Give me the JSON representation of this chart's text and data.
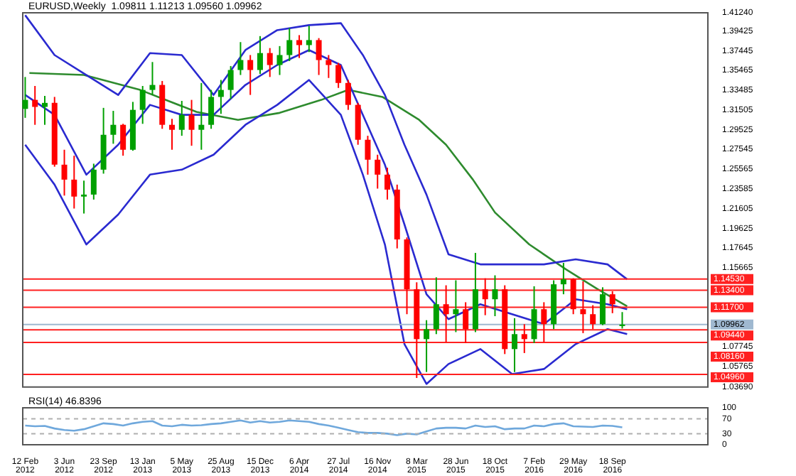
{
  "chart_data": [
    {
      "type": "candlestick",
      "title": "EURUSD,Weekly  1.09811 1.11213 1.09560 1.09962",
      "x": [
        "2012-02-12",
        "2012-03-11",
        "2012-04-08",
        "2012-05-06",
        "2012-06-03",
        "2012-07-01",
        "2012-07-29",
        "2012-08-26",
        "2012-09-23",
        "2012-10-21",
        "2012-11-18",
        "2012-12-16",
        "2013-01-13",
        "2013-02-10",
        "2013-03-10",
        "2013-04-07",
        "2013-05-05",
        "2013-06-02",
        "2013-06-30",
        "2013-07-28",
        "2013-08-25",
        "2013-09-22",
        "2013-10-20",
        "2013-11-17",
        "2013-12-15",
        "2014-01-12",
        "2014-02-09",
        "2014-03-09",
        "2014-04-06",
        "2014-05-04",
        "2014-06-01",
        "2014-06-29",
        "2014-07-27",
        "2014-08-24",
        "2014-09-21",
        "2014-10-19",
        "2014-11-16",
        "2014-12-14",
        "2015-01-11",
        "2015-02-08",
        "2015-03-08",
        "2015-04-05",
        "2015-05-03",
        "2015-05-31",
        "2015-06-28",
        "2015-07-26",
        "2015-08-23",
        "2015-09-20",
        "2015-10-18",
        "2015-11-15",
        "2015-12-13",
        "2016-01-10",
        "2016-02-07",
        "2016-03-06",
        "2016-04-03",
        "2016-05-01",
        "2016-05-29",
        "2016-06-26",
        "2016-07-24",
        "2016-08-21",
        "2016-09-18",
        "2016-10-16"
      ],
      "ohlc": [
        [
          1.316,
          1.348,
          1.307,
          1.325
        ],
        [
          1.325,
          1.339,
          1.3,
          1.318
        ],
        [
          1.318,
          1.329,
          1.3,
          1.322
        ],
        [
          1.322,
          1.328,
          1.258,
          1.26
        ],
        [
          1.26,
          1.275,
          1.229,
          1.245
        ],
        [
          1.245,
          1.269,
          1.216,
          1.228
        ],
        [
          1.228,
          1.244,
          1.211,
          1.23
        ],
        [
          1.23,
          1.261,
          1.225,
          1.255
        ],
        [
          1.255,
          1.317,
          1.251,
          1.29
        ],
        [
          1.29,
          1.314,
          1.281,
          1.3
        ],
        [
          1.3,
          1.301,
          1.269,
          1.275
        ],
        [
          1.275,
          1.323,
          1.274,
          1.315
        ],
        [
          1.315,
          1.339,
          1.301,
          1.335
        ],
        [
          1.335,
          1.363,
          1.33,
          1.34
        ],
        [
          1.34,
          1.344,
          1.296,
          1.3
        ],
        [
          1.3,
          1.306,
          1.275,
          1.295
        ],
        [
          1.295,
          1.324,
          1.289,
          1.31
        ],
        [
          1.31,
          1.325,
          1.279,
          1.295
        ],
        [
          1.295,
          1.342,
          1.275,
          1.3
        ],
        [
          1.3,
          1.335,
          1.296,
          1.328
        ],
        [
          1.328,
          1.345,
          1.311,
          1.335
        ],
        [
          1.335,
          1.359,
          1.326,
          1.355
        ],
        [
          1.355,
          1.383,
          1.35,
          1.365
        ],
        [
          1.365,
          1.37,
          1.33,
          1.355
        ],
        [
          1.355,
          1.389,
          1.351,
          1.372
        ],
        [
          1.372,
          1.377,
          1.348,
          1.36
        ],
        [
          1.36,
          1.379,
          1.35,
          1.37
        ],
        [
          1.37,
          1.397,
          1.364,
          1.385
        ],
        [
          1.385,
          1.39,
          1.367,
          1.38
        ],
        [
          1.38,
          1.3993,
          1.373,
          1.385
        ],
        [
          1.385,
          1.387,
          1.35,
          1.365
        ],
        [
          1.365,
          1.37,
          1.347,
          1.36
        ],
        [
          1.36,
          1.362,
          1.337,
          1.342
        ],
        [
          1.342,
          1.345,
          1.315,
          1.32
        ],
        [
          1.32,
          1.322,
          1.28,
          1.285
        ],
        [
          1.285,
          1.289,
          1.25,
          1.265
        ],
        [
          1.265,
          1.27,
          1.236,
          1.25
        ],
        [
          1.25,
          1.257,
          1.225,
          1.235
        ],
        [
          1.235,
          1.24,
          1.176,
          1.185
        ],
        [
          1.185,
          1.187,
          1.11,
          1.135
        ],
        [
          1.135,
          1.142,
          1.046,
          1.085
        ],
        [
          1.085,
          1.104,
          1.052,
          1.095
        ],
        [
          1.095,
          1.147,
          1.09,
          1.12
        ],
        [
          1.12,
          1.139,
          1.082,
          1.11
        ],
        [
          1.11,
          1.144,
          1.092,
          1.115
        ],
        [
          1.115,
          1.122,
          1.081,
          1.095
        ],
        [
          1.095,
          1.1715,
          1.092,
          1.135
        ],
        [
          1.135,
          1.146,
          1.109,
          1.125
        ],
        [
          1.125,
          1.149,
          1.108,
          1.135
        ],
        [
          1.135,
          1.139,
          1.07,
          1.075
        ],
        [
          1.075,
          1.106,
          1.052,
          1.09
        ],
        [
          1.09,
          1.1,
          1.071,
          1.085
        ],
        [
          1.085,
          1.138,
          1.081,
          1.115
        ],
        [
          1.115,
          1.122,
          1.082,
          1.1
        ],
        [
          1.1,
          1.144,
          1.095,
          1.14
        ],
        [
          1.14,
          1.1615,
          1.13,
          1.145
        ],
        [
          1.145,
          1.146,
          1.11,
          1.115
        ],
        [
          1.115,
          1.143,
          1.091,
          1.11
        ],
        [
          1.11,
          1.119,
          1.095,
          1.1
        ],
        [
          1.1,
          1.137,
          1.099,
          1.13
        ],
        [
          1.13,
          1.133,
          1.111,
          1.12
        ],
        [
          1.09811,
          1.11213,
          1.0956,
          1.09962
        ]
      ],
      "colors": [
        "#00a000",
        "#ff0000",
        "#00a000",
        "#ff0000",
        "#ff0000",
        "#ff0000",
        "#00a000",
        "#00a000",
        "#00a000",
        "#00a000",
        "#ff0000",
        "#00a000",
        "#00a000",
        "#00a000",
        "#ff0000",
        "#ff0000",
        "#00a000",
        "#ff0000",
        "#00a000",
        "#00a000",
        "#00a000",
        "#00a000",
        "#00a000",
        "#ff0000",
        "#00a000",
        "#ff0000",
        "#00a000",
        "#00a000",
        "#ff0000",
        "#00a000",
        "#ff0000",
        "#ff0000",
        "#ff0000",
        "#ff0000",
        "#ff0000",
        "#ff0000",
        "#ff0000",
        "#ff0000",
        "#ff0000",
        "#ff0000",
        "#ff0000",
        "#00a000",
        "#00a000",
        "#ff0000",
        "#00a000",
        "#ff0000",
        "#00a000",
        "#ff0000",
        "#00a000",
        "#ff0000",
        "#00a000",
        "#ff0000",
        "#00a000",
        "#ff0000",
        "#00a000",
        "#00a000",
        "#ff0000",
        "#ff0000",
        "#ff0000",
        "#00a000",
        "#ff0000",
        "#00a000"
      ],
      "series": [
        {
          "type": "line",
          "color": "#2a2ad0",
          "x": [
            "2012-02-12",
            "2012-05-06",
            "2012-08-05",
            "2012-11-04",
            "2013-02-03",
            "2013-05-05",
            "2013-08-04",
            "2013-11-03",
            "2014-02-02",
            "2014-05-04",
            "2014-08-03",
            "2014-10-05",
            "2014-12-07",
            "2015-02-01",
            "2015-04-05",
            "2015-06-07",
            "2015-09-06",
            "2015-12-06",
            "2016-03-06",
            "2016-06-05",
            "2016-09-04",
            "2016-10-30"
          ],
          "values": [
            1.41,
            1.37,
            1.35,
            1.33,
            1.372,
            1.37,
            1.33,
            1.375,
            1.395,
            1.4,
            1.402,
            1.37,
            1.33,
            1.28,
            1.23,
            1.17,
            1.16,
            1.16,
            1.16,
            1.165,
            1.16,
            1.145
          ]
        },
        {
          "type": "line",
          "color": "#2a2ad0",
          "x": [
            "2012-02-12",
            "2012-05-06",
            "2012-08-05",
            "2012-11-04",
            "2013-02-03",
            "2013-05-05",
            "2013-08-04",
            "2013-11-03",
            "2014-02-02",
            "2014-05-04",
            "2014-08-03",
            "2014-10-05",
            "2014-12-07",
            "2015-02-01",
            "2015-04-05",
            "2015-06-07",
            "2015-09-06",
            "2015-12-06",
            "2016-03-06",
            "2016-06-05",
            "2016-09-04",
            "2016-10-30"
          ],
          "values": [
            1.33,
            1.31,
            1.25,
            1.28,
            1.32,
            1.31,
            1.31,
            1.34,
            1.36,
            1.375,
            1.36,
            1.31,
            1.26,
            1.2,
            1.13,
            1.105,
            1.12,
            1.11,
            1.1,
            1.125,
            1.12,
            1.115
          ]
        },
        {
          "type": "line",
          "color": "#2a2ad0",
          "x": [
            "2012-02-12",
            "2012-05-06",
            "2012-08-05",
            "2012-11-04",
            "2013-02-03",
            "2013-05-05",
            "2013-08-04",
            "2013-11-03",
            "2014-02-02",
            "2014-05-04",
            "2014-08-03",
            "2014-10-05",
            "2014-12-07",
            "2015-02-01",
            "2015-04-05",
            "2015-06-07",
            "2015-09-06",
            "2015-12-06",
            "2016-03-06",
            "2016-06-05",
            "2016-09-04",
            "2016-10-30"
          ],
          "values": [
            1.28,
            1.24,
            1.18,
            1.21,
            1.25,
            1.255,
            1.27,
            1.3,
            1.32,
            1.345,
            1.31,
            1.25,
            1.18,
            1.08,
            1.04,
            1.06,
            1.075,
            1.05,
            1.055,
            1.08,
            1.095,
            1.09
          ]
        },
        {
          "type": "line",
          "color": "#2e8b2e",
          "x": [
            "2012-02-24",
            "2012-07-29",
            "2013-01-06",
            "2013-06-16",
            "2013-10-13",
            "2014-02-09",
            "2014-06-08",
            "2014-08-24",
            "2014-11-30",
            "2015-03-15",
            "2015-05-31",
            "2015-08-16",
            "2015-10-18",
            "2016-01-24",
            "2016-05-08",
            "2016-08-07",
            "2016-10-30"
          ],
          "values": [
            1.352,
            1.35,
            1.335,
            1.313,
            1.305,
            1.312,
            1.325,
            1.335,
            1.328,
            1.305,
            1.28,
            1.245,
            1.212,
            1.18,
            1.155,
            1.135,
            1.118
          ]
        }
      ],
      "ref_lines": [
        {
          "axis": "y",
          "value": 1.1453,
          "label": "1.14530",
          "color": "#ff2020"
        },
        {
          "axis": "y",
          "value": 1.134,
          "label": "1.13400",
          "color": "#ff2020"
        },
        {
          "axis": "y",
          "value": 1.117,
          "label": "1.11700",
          "color": "#ff2020"
        },
        {
          "axis": "y",
          "value": 1.09962,
          "label": "1.09962",
          "color": "#9fb8d0"
        },
        {
          "axis": "y",
          "value": 1.0944,
          "label": "1.09440",
          "color": "#ff2020"
        },
        {
          "axis": "y",
          "value": 1.0816,
          "label": "1.08160",
          "color": "#ff2020"
        },
        {
          "axis": "y",
          "value": 1.0496,
          "label": "1.04960",
          "color": "#ff2020"
        }
      ],
      "xlim": [
        "2012-02-05",
        "2017-06-18"
      ],
      "ylim": [
        1.0369,
        1.4124
      ],
      "yticks": [
        {
          "value": 1.0369,
          "label": "1.03690"
        },
        1.05765,
        1.07745,
        1.15665,
        1.17645,
        1.19625,
        1.21605,
        1.23585,
        1.25565,
        1.27545,
        1.29525,
        1.31505,
        1.33485,
        1.35465,
        1.37445,
        1.39425,
        {
          "value": 1.4124,
          "label": "1.41240"
        }
      ],
      "tick_labels": "y",
      "grid": false,
      "legend": false
    },
    {
      "type": "line",
      "title": "RSI(14) 46.8396",
      "x": [
        "2012-02-12",
        "2012-03-11",
        "2012-04-08",
        "2012-05-06",
        "2012-06-03",
        "2012-07-01",
        "2012-07-29",
        "2012-08-26",
        "2012-09-23",
        "2012-10-21",
        "2012-11-18",
        "2012-12-16",
        "2013-01-13",
        "2013-02-10",
        "2013-03-10",
        "2013-04-07",
        "2013-05-05",
        "2013-06-02",
        "2013-06-30",
        "2013-07-28",
        "2013-08-25",
        "2013-09-22",
        "2013-10-20",
        "2013-11-17",
        "2013-12-15",
        "2014-01-12",
        "2014-02-09",
        "2014-03-09",
        "2014-04-06",
        "2014-05-04",
        "2014-06-01",
        "2014-06-29",
        "2014-07-27",
        "2014-08-24",
        "2014-09-21",
        "2014-10-19",
        "2014-11-16",
        "2014-12-14",
        "2015-01-11",
        "2015-02-08",
        "2015-03-08",
        "2015-04-05",
        "2015-05-03",
        "2015-05-31",
        "2015-06-28",
        "2015-07-26",
        "2015-08-23",
        "2015-09-20",
        "2015-10-18",
        "2015-11-15",
        "2015-12-13",
        "2016-01-10",
        "2016-02-07",
        "2016-03-06",
        "2016-04-03",
        "2016-05-01",
        "2016-05-29",
        "2016-06-26",
        "2016-07-24",
        "2016-08-21",
        "2016-09-18",
        "2016-10-16"
      ],
      "series": [
        {
          "color": "#6fa8dc",
          "values": [
            52,
            50,
            51,
            44,
            40,
            38,
            42,
            50,
            58,
            56,
            52,
            58,
            62,
            64,
            52,
            50,
            54,
            52,
            53,
            56,
            58,
            62,
            66,
            60,
            64,
            60,
            62,
            66,
            64,
            62,
            56,
            52,
            46,
            40,
            34,
            32,
            32,
            30,
            26,
            30,
            28,
            36,
            44,
            46,
            46,
            44,
            52,
            48,
            50,
            42,
            44,
            44,
            52,
            50,
            56,
            58,
            50,
            49,
            48,
            52,
            51,
            47
          ]
        }
      ],
      "xlim": [
        "2012-02-05",
        "2017-06-18"
      ],
      "xticks": [
        {
          "value": "2012-02-12",
          "label": "12 Feb 2012"
        },
        {
          "value": "2012-06-03",
          "label": "3 Jun 2012"
        },
        {
          "value": "2012-09-23",
          "label": "23 Sep 2012"
        },
        {
          "value": "2013-01-13",
          "label": "13 Jan 2013"
        },
        {
          "value": "2013-05-05",
          "label": "5 May 2013"
        },
        {
          "value": "2013-08-25",
          "label": "25 Aug 2013"
        },
        {
          "value": "2013-12-15",
          "label": "15 Dec 2013"
        },
        {
          "value": "2014-04-06",
          "label": "6 Apr 2014"
        },
        {
          "value": "2014-07-27",
          "label": "27 Jul 2014"
        },
        {
          "value": "2014-11-16",
          "label": "16 Nov 2014"
        },
        {
          "value": "2015-03-08",
          "label": "8 Mar 2015"
        },
        {
          "value": "2015-06-28",
          "label": "28 Jun 2015"
        },
        {
          "value": "2015-10-18",
          "label": "18 Oct 2015"
        },
        {
          "value": "2016-02-07",
          "label": "7 Feb 2016"
        },
        {
          "value": "2016-05-29",
          "label": "29 May 2016"
        },
        {
          "value": "2016-09-18",
          "label": "18 Sep 2016"
        }
      ],
      "ylim": [
        0,
        100
      ],
      "yticks": [
        0,
        30,
        70,
        100
      ],
      "ref_lines": [
        {
          "axis": "y",
          "value": 70,
          "color": "#b0b0b0",
          "line_style": "dashed"
        },
        {
          "axis": "y",
          "value": 30,
          "color": "#b0b0b0",
          "line_style": "dashed"
        }
      ],
      "grid": false,
      "legend": false
    }
  ]
}
